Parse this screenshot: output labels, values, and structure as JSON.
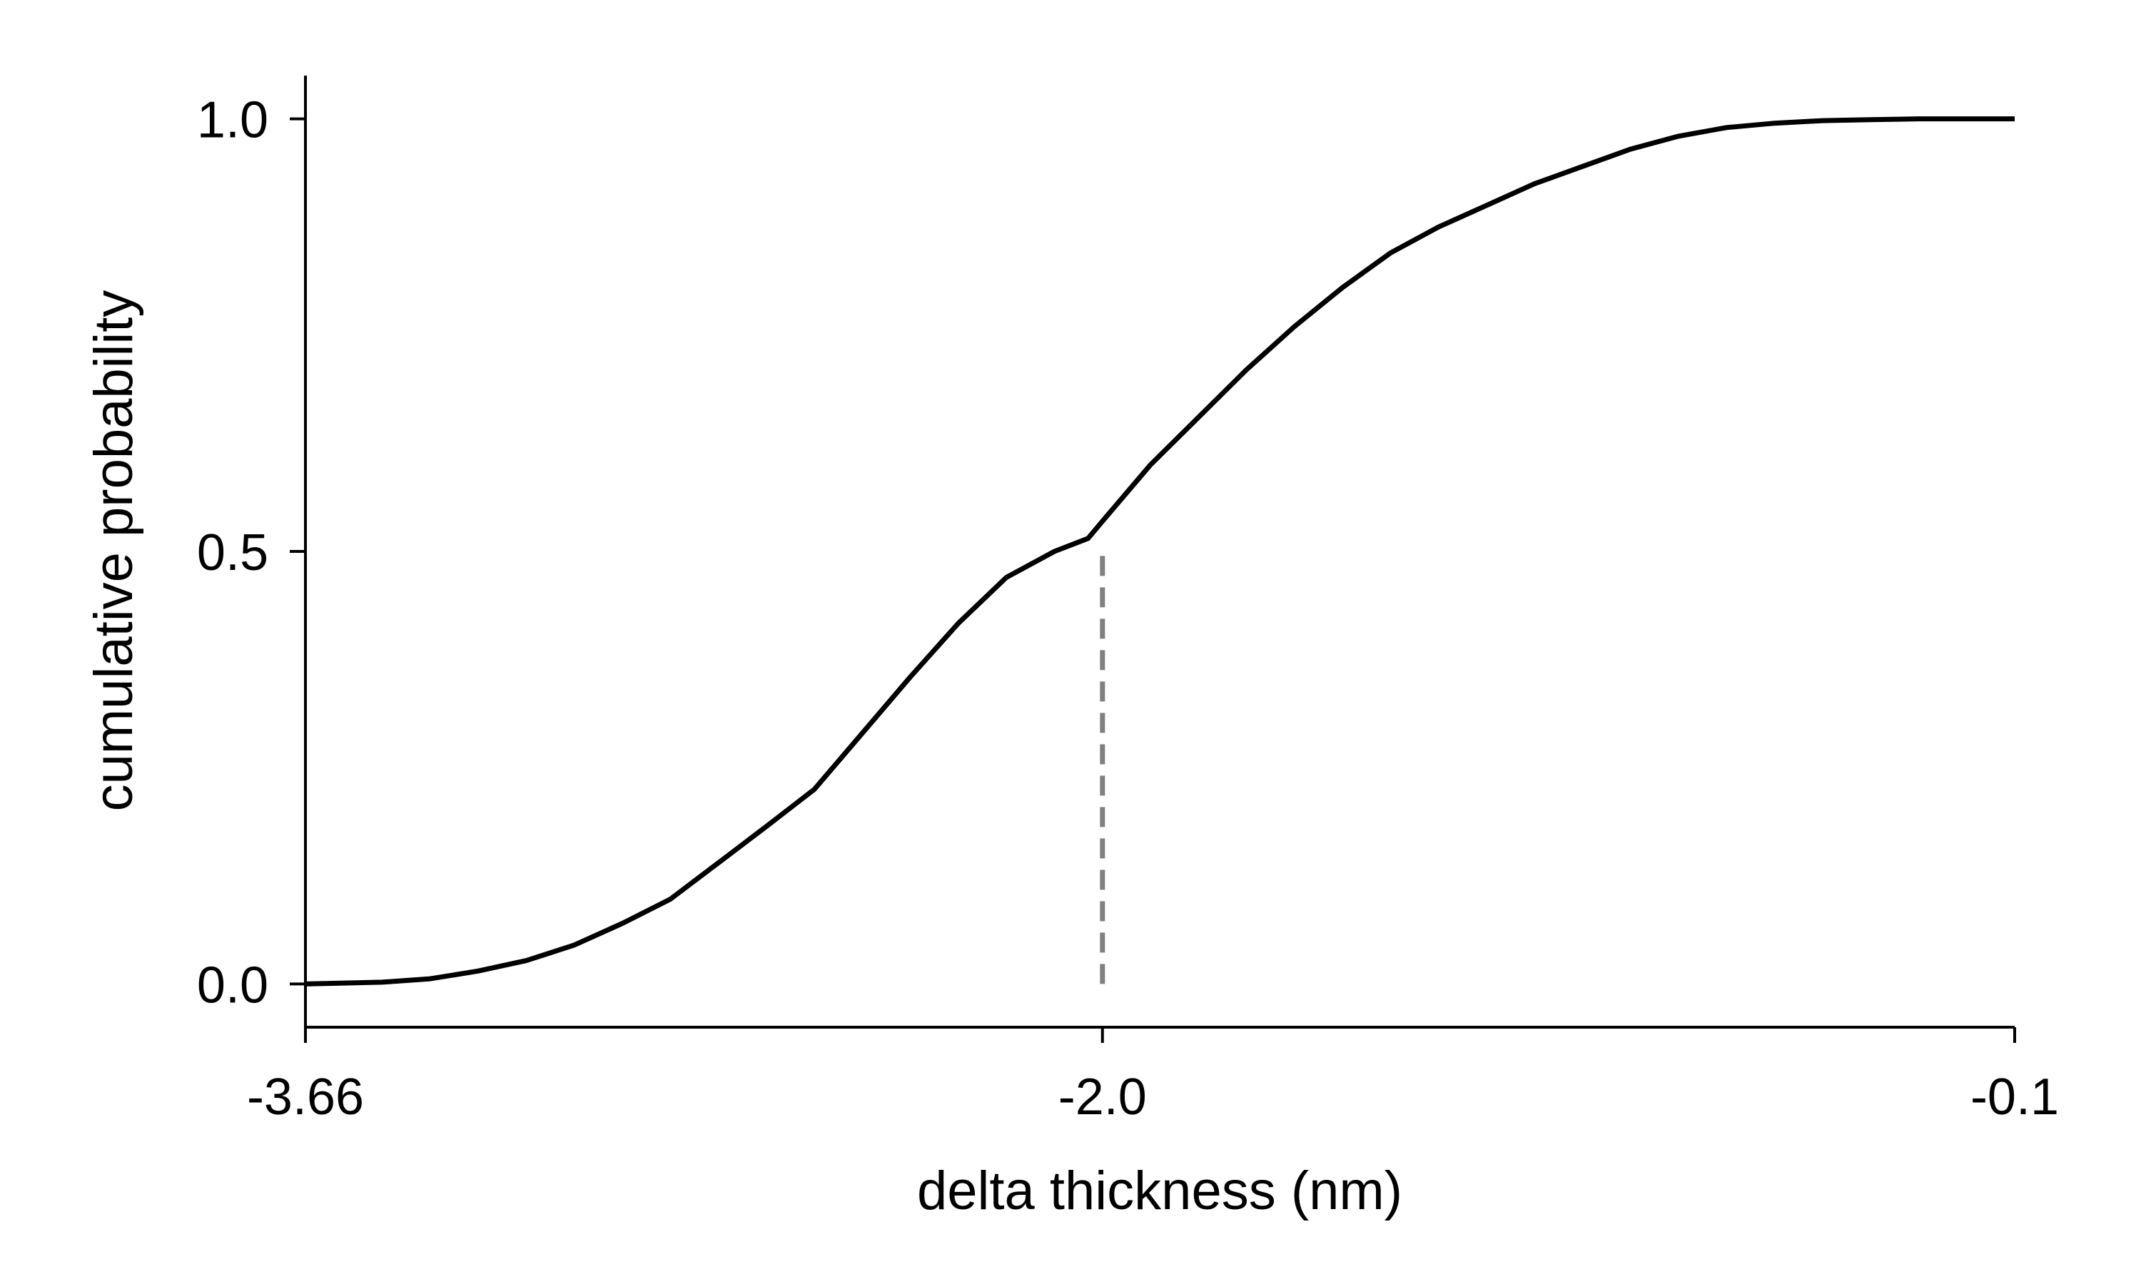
{
  "chart_data": {
    "type": "line",
    "title": "",
    "xlabel": "delta thickness (nm)",
    "ylabel": "cumulative probability",
    "xlim": [
      -3.66,
      -0.1
    ],
    "ylim": [
      -0.05,
      1.05
    ],
    "x_ticks": [
      {
        "value": -3.66,
        "label": "-3.66"
      },
      {
        "value": -2.0,
        "label": "-2.0"
      },
      {
        "value": -0.1,
        "label": "-0.1"
      }
    ],
    "y_ticks": [
      {
        "value": 0.0,
        "label": "0.0"
      },
      {
        "value": 0.5,
        "label": "0.5"
      },
      {
        "value": 1.0,
        "label": "1.0"
      }
    ],
    "grid": false,
    "legend": "none",
    "series": [
      {
        "style": "solid",
        "color": "#000000",
        "x": [
          -3.66,
          -3.5,
          -3.4,
          -3.3,
          -3.2,
          -3.1,
          -3.0,
          -2.9,
          -2.8,
          -2.7,
          -2.6,
          -2.5,
          -2.4,
          -2.3,
          -2.2,
          -2.1,
          -2.03,
          -2.0,
          -1.9,
          -1.8,
          -1.7,
          -1.6,
          -1.5,
          -1.4,
          -1.3,
          -1.2,
          -1.1,
          -1.0,
          -0.9,
          -0.8,
          -0.7,
          -0.6,
          -0.5,
          -0.4,
          -0.3,
          -0.1
        ],
        "y": [
          0.0,
          0.002,
          0.006,
          0.015,
          0.027,
          0.045,
          0.07,
          0.098,
          0.14,
          0.182,
          0.225,
          0.29,
          0.355,
          0.417,
          0.47,
          0.5,
          0.515,
          0.535,
          0.6,
          0.655,
          0.71,
          0.76,
          0.805,
          0.845,
          0.875,
          0.9,
          0.925,
          0.945,
          0.965,
          0.98,
          0.99,
          0.995,
          0.998,
          0.999,
          1.0,
          1.0
        ]
      },
      {
        "style": "dashed",
        "color": "#808080",
        "x": [
          -2.0,
          -2.0
        ],
        "y": [
          0.0,
          0.5
        ]
      }
    ]
  }
}
